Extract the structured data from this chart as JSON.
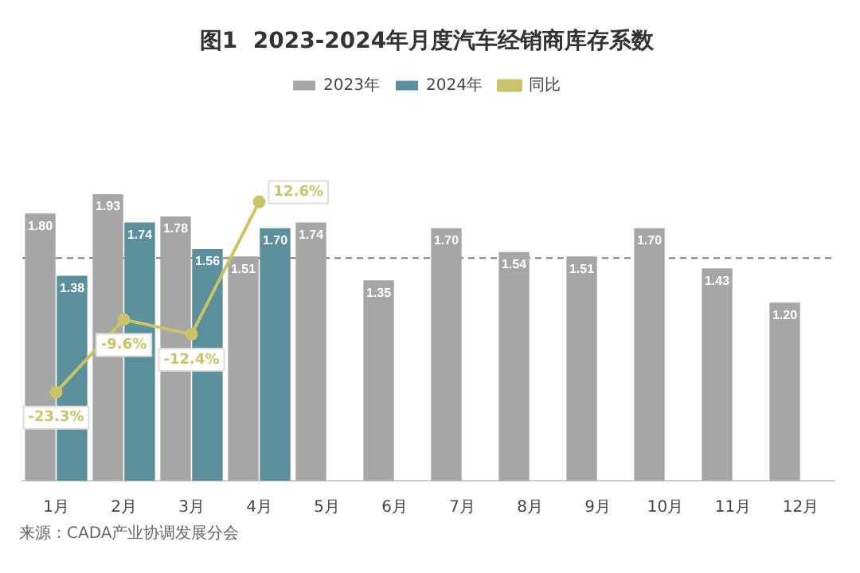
{
  "chart_data": {
    "type": "bar",
    "title": "图1  2023-2024年月度汽车经销商库存系数",
    "categories": [
      "1月",
      "2月",
      "3月",
      "4月",
      "5月",
      "6月",
      "7月",
      "8月",
      "9月",
      "10月",
      "11月",
      "12月"
    ],
    "series": [
      {
        "name": "2023年",
        "color": "#a6a6a6",
        "values": [
          1.8,
          1.93,
          1.78,
          1.51,
          1.74,
          1.35,
          1.7,
          1.54,
          1.51,
          1.7,
          1.43,
          1.2
        ],
        "value_labels": [
          "1.80",
          "1.93",
          "1.78",
          "1.51",
          "1.74",
          "1.35",
          "1.70",
          "1.54",
          "1.51",
          "1.70",
          "1.43",
          "1.20"
        ]
      },
      {
        "name": "2024年",
        "color": "#5b8f9c",
        "values": [
          1.38,
          1.74,
          1.56,
          1.7,
          null,
          null,
          null,
          null,
          null,
          null,
          null,
          null
        ],
        "value_labels": [
          "1.38",
          "1.74",
          "1.56",
          "1.70",
          null,
          null,
          null,
          null,
          null,
          null,
          null,
          null
        ]
      },
      {
        "name": "同比",
        "type": "line",
        "axis": "y2",
        "color": "#c9c46a",
        "marker": "circle",
        "values": [
          -23.3,
          -9.6,
          -12.4,
          12.6,
          null,
          null,
          null,
          null,
          null,
          null,
          null,
          null
        ],
        "value_labels": [
          "-23.3%",
          "-9.6%",
          "-12.4%",
          "12.6%",
          null,
          null,
          null,
          null,
          null,
          null,
          null,
          null
        ]
      }
    ],
    "ref_lines": [
      {
        "axis": "y",
        "value": 1.5,
        "color": "#808080",
        "line_style": "dashed"
      }
    ],
    "legend": "top",
    "grid": false,
    "annotations": [
      "来源：CADA产业协调发展分会"
    ]
  }
}
